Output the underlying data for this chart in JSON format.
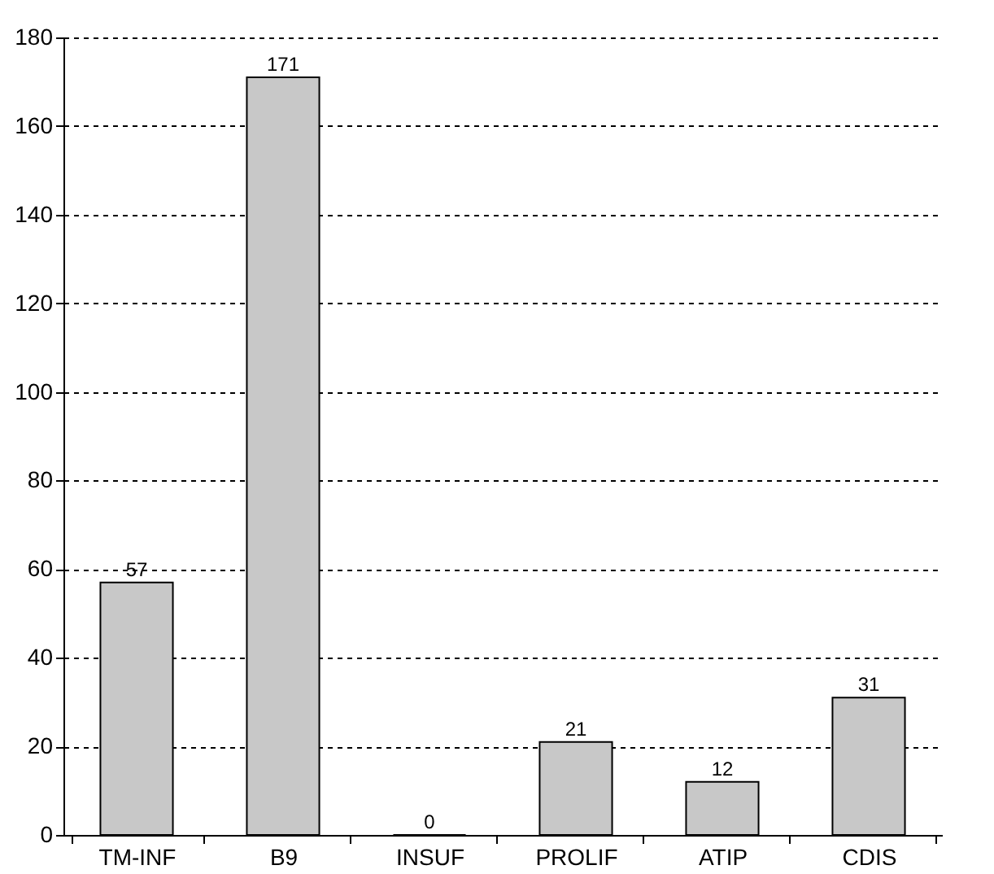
{
  "chart_data": {
    "type": "bar",
    "categories": [
      "TM-INF",
      "B9",
      "INSUF",
      "PROLIF",
      "ATIP",
      "CDIS"
    ],
    "values": [
      57,
      171,
      0,
      21,
      12,
      31
    ],
    "color": "#c8c8c8",
    "ylim": [
      0,
      180
    ],
    "yticks": [
      0,
      20,
      40,
      60,
      80,
      100,
      120,
      140,
      160,
      180
    ],
    "grid": "y",
    "data_labels": true
  }
}
